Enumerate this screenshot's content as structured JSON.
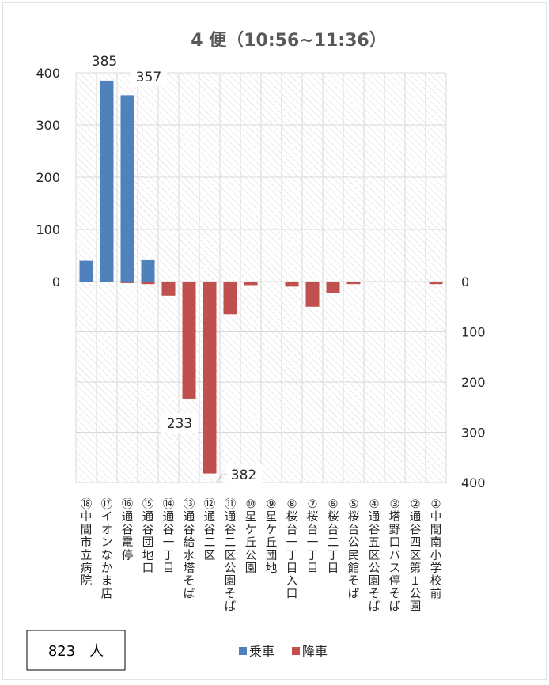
{
  "chart_data": {
    "type": "bar",
    "title": "4 便（10:56~11:36）",
    "categories": [
      "⑱中間市立病院",
      "⑰イオンなかま店",
      "⑯通谷電停",
      "⑮通谷団地口",
      "⑭通谷一丁目",
      "⑬通谷給水塔そば",
      "⑫通谷二区",
      "⑪通谷二区公園そば",
      "⑩星ケ丘公園",
      "⑨星ケ丘団地",
      "⑧桜台一丁目入口",
      "⑦桜台一丁目",
      "⑥桜台二丁目",
      "⑤桜台公民館そば",
      "④通谷五区公園そば",
      "③塔野口バス停そば",
      "②通谷四区第１公園",
      "①中間南小学校前"
    ],
    "series": [
      {
        "name": "乗車",
        "color": "#4f81bd",
        "values": [
          40,
          385,
          357,
          41,
          0,
          0,
          0,
          0,
          0,
          0,
          0,
          0,
          0,
          0,
          0,
          0,
          0,
          0
        ]
      },
      {
        "name": "降車",
        "color": "#c0504d",
        "values": [
          0,
          0,
          3,
          5,
          28,
          233,
          382,
          65,
          7,
          0,
          10,
          50,
          22,
          5,
          0,
          0,
          0,
          5
        ]
      }
    ],
    "left_axis": {
      "ticks": [
        "400",
        "300",
        "200",
        "100",
        "0"
      ],
      "ylim": [
        0,
        400
      ]
    },
    "right_axis": {
      "ticks": [
        "0",
        "100",
        "200",
        "300",
        "400"
      ],
      "ylim": [
        0,
        400
      ]
    },
    "data_labels": [
      {
        "series": "乗車",
        "category_index": 1,
        "text": "385"
      },
      {
        "series": "乗車",
        "category_index": 2,
        "text": "357"
      },
      {
        "series": "降車",
        "category_index": 5,
        "text": "233"
      },
      {
        "series": "降車",
        "category_index": 6,
        "text": "382"
      }
    ],
    "legend": {
      "position": "bottom",
      "items": [
        "乗車",
        "降車"
      ]
    },
    "total_box": "823　人",
    "grid": true
  }
}
